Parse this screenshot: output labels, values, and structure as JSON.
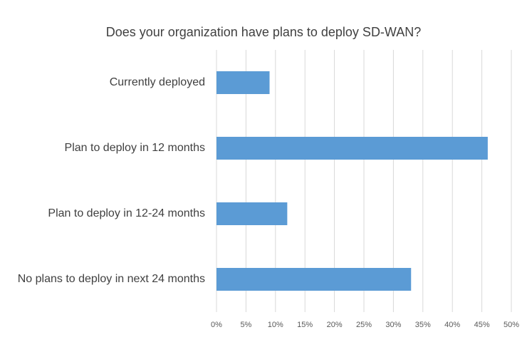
{
  "chart_data": {
    "type": "bar",
    "orientation": "horizontal",
    "title": "Does your organization have plans to deploy SD-WAN?",
    "categories": [
      "Currently deployed",
      "Plan to deploy in 12 months",
      "Plan to deploy in 12-24 months",
      "No plans to deploy in next 24 months"
    ],
    "values": [
      9,
      46,
      12,
      33
    ],
    "color": "#5b9bd5",
    "xlim": [
      0,
      50
    ],
    "xticks": [
      {
        "value": 0,
        "label": "0%"
      },
      {
        "value": 5,
        "label": "5%"
      },
      {
        "value": 10,
        "label": "10%"
      },
      {
        "value": 15,
        "label": "15%"
      },
      {
        "value": 20,
        "label": "20%"
      },
      {
        "value": 25,
        "label": "25%"
      },
      {
        "value": 30,
        "label": "30%"
      },
      {
        "value": 35,
        "label": "35%"
      },
      {
        "value": 40,
        "label": "40%"
      },
      {
        "value": 45,
        "label": "45%"
      },
      {
        "value": 50,
        "label": "50%"
      }
    ],
    "grid": true
  }
}
